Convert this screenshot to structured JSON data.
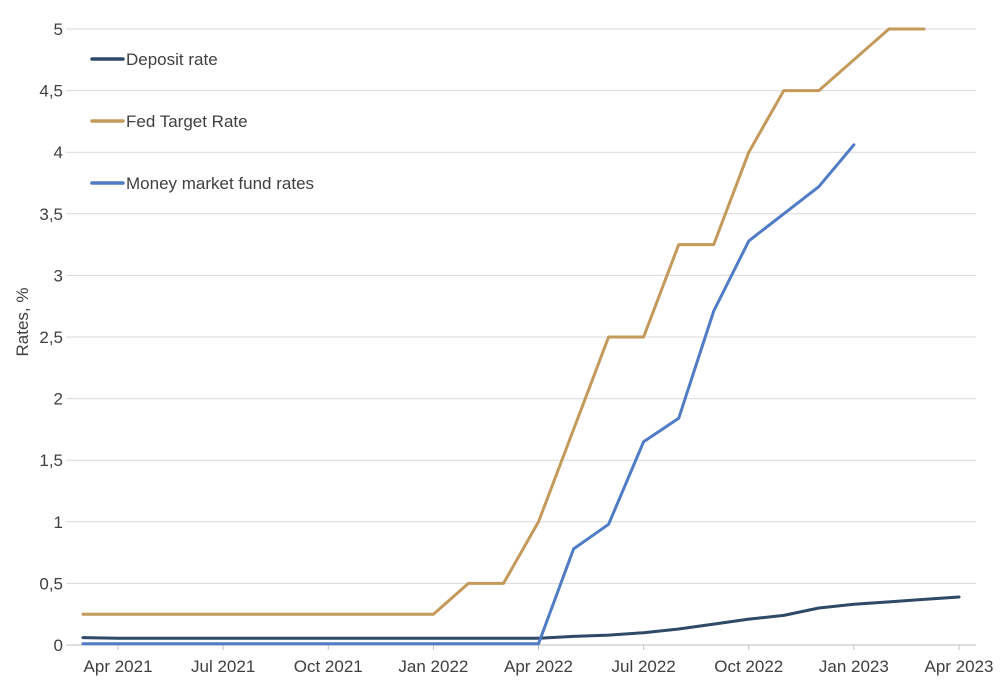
{
  "chart_data": {
    "type": "line",
    "title": "",
    "xlabel": "",
    "ylabel": "Rates, %",
    "ylim": [
      0,
      5
    ],
    "y_ticks": [
      "0",
      "0,5",
      "1",
      "1,5",
      "2",
      "2,5",
      "3",
      "3,5",
      "4",
      "4,5",
      "5"
    ],
    "x_ticks": [
      "Apr 2021",
      "Jul 2021",
      "Oct 2021",
      "Jan 2022",
      "Apr 2022",
      "Jul 2022",
      "Oct 2022",
      "Jan 2023",
      "Apr 2023"
    ],
    "x": [
      "2021-03",
      "2021-04",
      "2021-05",
      "2021-06",
      "2021-07",
      "2021-08",
      "2021-09",
      "2021-10",
      "2021-11",
      "2021-12",
      "2022-01",
      "2022-02",
      "2022-03",
      "2022-04",
      "2022-05",
      "2022-06",
      "2022-07",
      "2022-08",
      "2022-09",
      "2022-10",
      "2022-11",
      "2022-12",
      "2023-01",
      "2023-02",
      "2023-03",
      "2023-04"
    ],
    "grid": true,
    "legend_position": "top-left",
    "series": [
      {
        "name": "Deposit rate",
        "color": "#2e4a66",
        "values": [
          0.06,
          0.055,
          0.055,
          0.055,
          0.055,
          0.055,
          0.055,
          0.055,
          0.055,
          0.055,
          0.055,
          0.055,
          0.055,
          0.055,
          0.07,
          0.08,
          0.1,
          0.13,
          0.17,
          0.21,
          0.24,
          0.3,
          0.33,
          0.35,
          0.37,
          0.39
        ]
      },
      {
        "name": "Fed Target Rate",
        "color": "#c49a5a",
        "values": [
          0.25,
          0.25,
          0.25,
          0.25,
          0.25,
          0.25,
          0.25,
          0.25,
          0.25,
          0.25,
          0.25,
          0.5,
          0.5,
          1.0,
          1.75,
          2.5,
          2.5,
          3.25,
          3.25,
          4.0,
          4.5,
          4.5,
          4.75,
          5.0,
          5.0,
          null
        ]
      },
      {
        "name": "Money market fund rates",
        "color": "#4f7cc4",
        "values": [
          0.01,
          0.01,
          0.01,
          0.01,
          0.01,
          0.01,
          0.01,
          0.01,
          0.01,
          0.01,
          0.01,
          0.01,
          0.01,
          0.01,
          0.78,
          0.98,
          1.65,
          1.84,
          2.71,
          3.28,
          3.5,
          3.72,
          4.06,
          null,
          null,
          null
        ]
      }
    ]
  }
}
